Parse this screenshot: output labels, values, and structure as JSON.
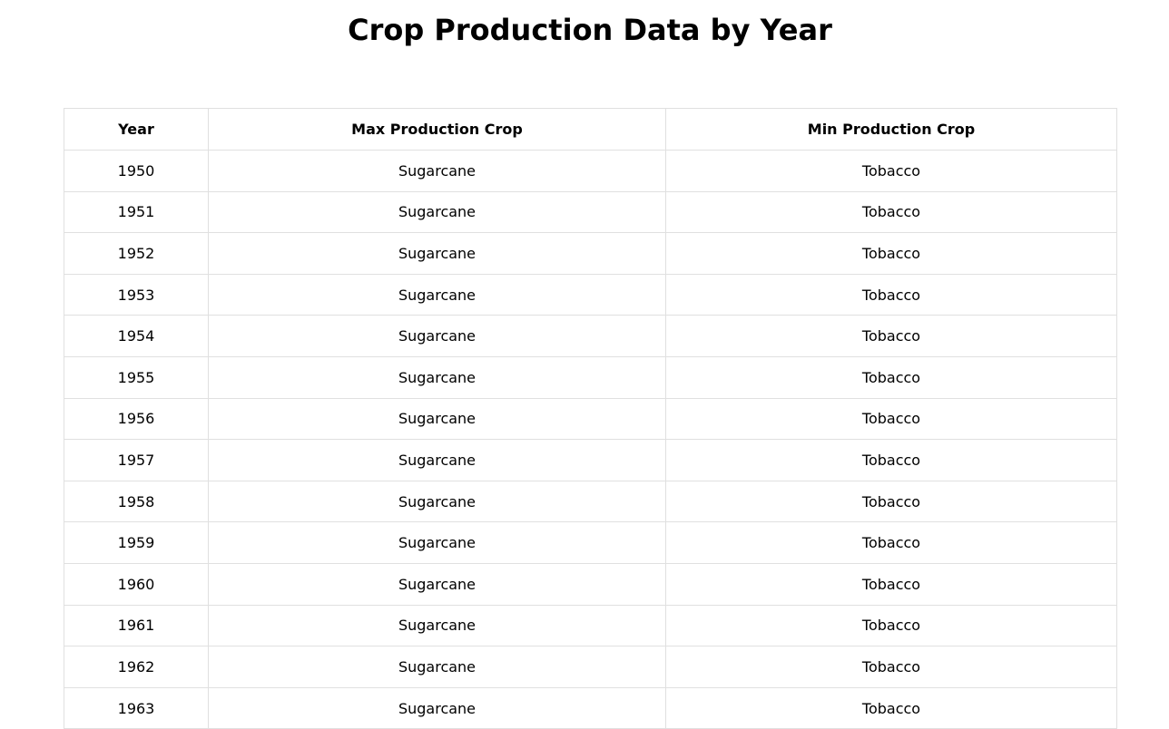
{
  "page": {
    "title": "Crop Production Data by Year"
  },
  "table": {
    "headers": {
      "year": "Year",
      "max": "Max Production Crop",
      "min": "Min Production Crop"
    },
    "rows": [
      {
        "year": "1950",
        "max": "Sugarcane",
        "min": "Tobacco"
      },
      {
        "year": "1951",
        "max": "Sugarcane",
        "min": "Tobacco"
      },
      {
        "year": "1952",
        "max": "Sugarcane",
        "min": "Tobacco"
      },
      {
        "year": "1953",
        "max": "Sugarcane",
        "min": "Tobacco"
      },
      {
        "year": "1954",
        "max": "Sugarcane",
        "min": "Tobacco"
      },
      {
        "year": "1955",
        "max": "Sugarcane",
        "min": "Tobacco"
      },
      {
        "year": "1956",
        "max": "Sugarcane",
        "min": "Tobacco"
      },
      {
        "year": "1957",
        "max": "Sugarcane",
        "min": "Tobacco"
      },
      {
        "year": "1958",
        "max": "Sugarcane",
        "min": "Tobacco"
      },
      {
        "year": "1959",
        "max": "Sugarcane",
        "min": "Tobacco"
      },
      {
        "year": "1960",
        "max": "Sugarcane",
        "min": "Tobacco"
      },
      {
        "year": "1961",
        "max": "Sugarcane",
        "min": "Tobacco"
      },
      {
        "year": "1962",
        "max": "Sugarcane",
        "min": "Tobacco"
      },
      {
        "year": "1963",
        "max": "Sugarcane",
        "min": "Tobacco"
      }
    ]
  }
}
